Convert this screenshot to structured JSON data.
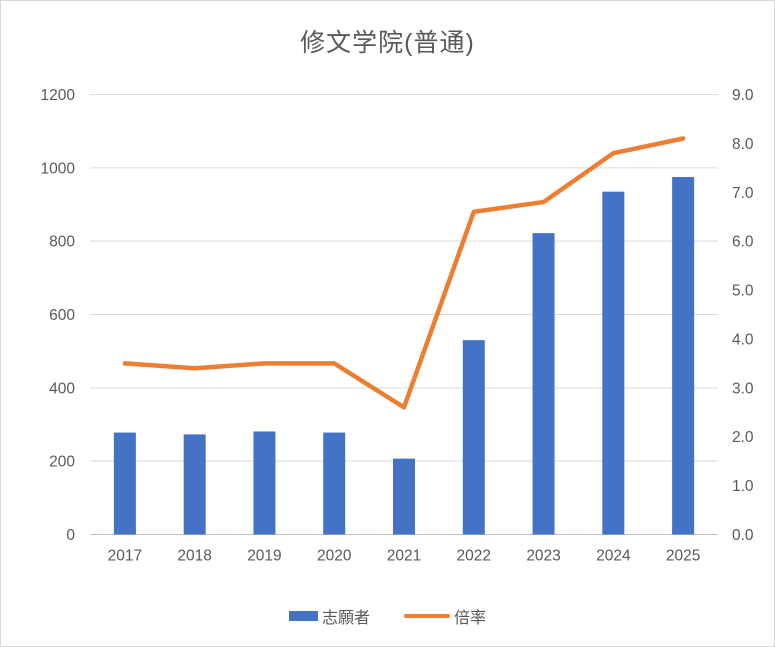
{
  "chart_data": {
    "type": "bar",
    "title": "修文学院(普通)",
    "categories": [
      "2017",
      "2018",
      "2019",
      "2020",
      "2021",
      "2022",
      "2023",
      "2024",
      "2025"
    ],
    "series": [
      {
        "name": "志願者",
        "type": "bar",
        "axis": "left",
        "color": "#4472C4",
        "values": [
          278,
          273,
          281,
          278,
          207,
          530,
          822,
          935,
          975
        ]
      },
      {
        "name": "倍率",
        "type": "line",
        "axis": "right",
        "color": "#ED7D31",
        "values": [
          3.5,
          3.4,
          3.5,
          3.5,
          2.6,
          6.6,
          6.8,
          7.8,
          8.1
        ]
      }
    ],
    "y_left_axis": {
      "min": 0,
      "max": 1200,
      "step": 200,
      "tick_labels": [
        "0",
        "200",
        "400",
        "600",
        "800",
        "1000",
        "1200"
      ]
    },
    "y_right_axis": {
      "min": 0,
      "max": 9,
      "step": 1,
      "tick_labels": [
        "0.0",
        "1.0",
        "2.0",
        "3.0",
        "4.0",
        "5.0",
        "6.0",
        "7.0",
        "8.0",
        "9.0"
      ]
    },
    "grid": true,
    "legend_position": "bottom"
  },
  "colors": {
    "bar_blue": "#4472C4",
    "line_orange": "#ED7D31",
    "gridline": "#D9D9D9",
    "baseline": "#BFBFBF",
    "axis_text": "#595959",
    "title_text": "#595959",
    "frame_border": "#D7D7D7"
  }
}
